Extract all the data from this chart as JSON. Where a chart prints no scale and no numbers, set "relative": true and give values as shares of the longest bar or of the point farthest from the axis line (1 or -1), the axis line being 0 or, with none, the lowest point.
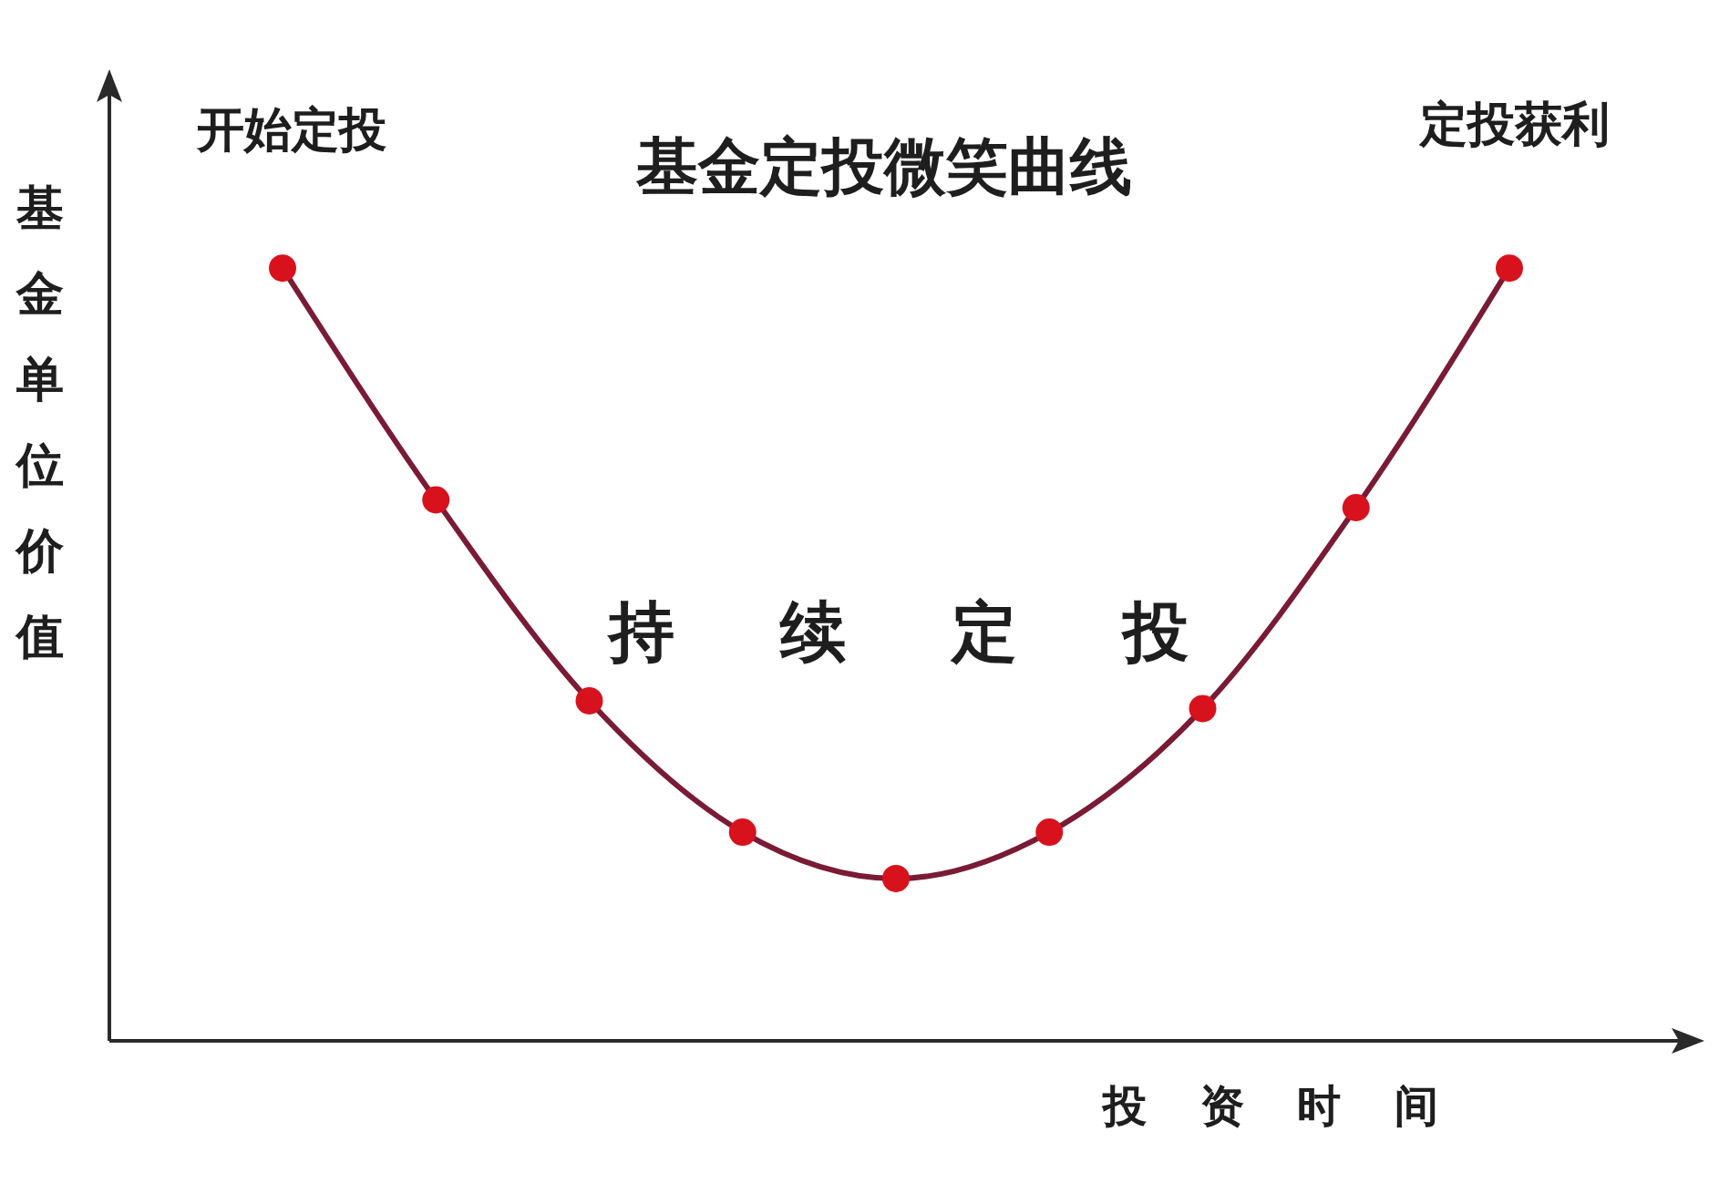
{
  "chart_data": {
    "type": "line",
    "title": "基金定投微笑曲线",
    "xlabel": "投资时间",
    "ylabel": "基金单位价值",
    "annotations": [
      "开始定投",
      "定投获利",
      "持续定投"
    ],
    "categories": [
      null,
      null,
      null,
      null,
      null,
      null,
      null,
      null,
      null
    ],
    "series": [
      {
        "color": "#7a1b36",
        "colors": [
          "#d8121d",
          "#d8121d",
          "#d8121d",
          "#d8121d",
          "#d8121d",
          "#d8121d",
          "#d8121d",
          "#d8121d",
          "#d8121d"
        ],
        "values": [
          1,
          0.7,
          0.44,
          0.27,
          0.21,
          0.27,
          0.43,
          0.69,
          1
        ]
      }
    ],
    "relative": true,
    "marker": "circle",
    "line_style": "solid"
  }
}
